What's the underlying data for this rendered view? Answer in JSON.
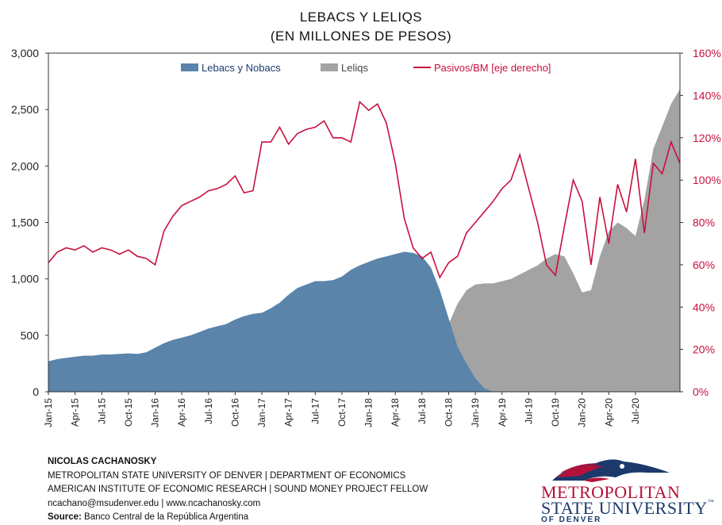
{
  "title": "LEBACS Y LELIQS",
  "subtitle": "(EN MILLONES DE PESOS)",
  "chart_data": {
    "type": "area",
    "x_ticks": [
      "Jan-15",
      "Apr-15",
      "Jul-15",
      "Oct-15",
      "Jan-16",
      "Apr-16",
      "Jul-16",
      "Oct-16",
      "Jan-17",
      "Apr-17",
      "Jul-17",
      "Oct-17",
      "Jan-18",
      "Apr-18",
      "Jul-18",
      "Oct-18",
      "Jan-19",
      "Apr-19",
      "Jul-19",
      "Oct-19",
      "Jan-20",
      "Apr-20",
      "Jul-20"
    ],
    "x_range_months": [
      0,
      71
    ],
    "y_left": {
      "ticks": [
        "0",
        "500",
        "1,000",
        "1,500",
        "2,000",
        "2,500",
        "3,000"
      ],
      "range": [
        0,
        3000
      ]
    },
    "y_right": {
      "ticks": [
        "0%",
        "20%",
        "40%",
        "60%",
        "80%",
        "100%",
        "120%",
        "140%",
        "160%"
      ],
      "range": [
        0,
        160
      ]
    },
    "legend": {
      "placement": "top",
      "entries": [
        "Lebacs y Nobacs",
        "Leliqs",
        "Pasivos/BM [eje derecho]"
      ]
    },
    "colors": {
      "lebacs": "#5a84aa",
      "leliqs": "#a3a3a3",
      "ratio": "#c8103e",
      "right_axis": "#c8103e"
    },
    "series": [
      {
        "name": "Lebacs y Nobacs",
        "axis": "left",
        "points": [
          [
            0,
            270
          ],
          [
            1,
            290
          ],
          [
            2,
            300
          ],
          [
            3,
            310
          ],
          [
            4,
            320
          ],
          [
            5,
            320
          ],
          [
            6,
            330
          ],
          [
            7,
            330
          ],
          [
            8,
            335
          ],
          [
            9,
            340
          ],
          [
            10,
            335
          ],
          [
            11,
            350
          ],
          [
            12,
            390
          ],
          [
            13,
            430
          ],
          [
            14,
            460
          ],
          [
            15,
            480
          ],
          [
            16,
            500
          ],
          [
            17,
            530
          ],
          [
            18,
            560
          ],
          [
            19,
            580
          ],
          [
            20,
            600
          ],
          [
            21,
            640
          ],
          [
            22,
            670
          ],
          [
            23,
            690
          ],
          [
            24,
            700
          ],
          [
            25,
            740
          ],
          [
            26,
            790
          ],
          [
            27,
            860
          ],
          [
            28,
            920
          ],
          [
            29,
            950
          ],
          [
            30,
            980
          ],
          [
            31,
            980
          ],
          [
            32,
            990
          ],
          [
            33,
            1020
          ],
          [
            34,
            1080
          ],
          [
            35,
            1120
          ],
          [
            36,
            1150
          ],
          [
            37,
            1180
          ],
          [
            38,
            1200
          ],
          [
            39,
            1220
          ],
          [
            40,
            1240
          ],
          [
            41,
            1230
          ],
          [
            42,
            1200
          ],
          [
            43,
            1100
          ],
          [
            44,
            900
          ],
          [
            45,
            650
          ],
          [
            46,
            400
          ],
          [
            47,
            250
          ],
          [
            48,
            120
          ],
          [
            49,
            30
          ],
          [
            50,
            0
          ],
          [
            71,
            0
          ]
        ]
      },
      {
        "name": "Leliqs",
        "axis": "left",
        "points": [
          [
            0,
            0
          ],
          [
            41,
            0
          ],
          [
            42,
            30
          ],
          [
            43,
            220
          ],
          [
            44,
            370
          ],
          [
            45,
            600
          ],
          [
            46,
            780
          ],
          [
            47,
            900
          ],
          [
            48,
            950
          ],
          [
            49,
            960
          ],
          [
            50,
            960
          ],
          [
            51,
            980
          ],
          [
            52,
            1000
          ],
          [
            53,
            1040
          ],
          [
            54,
            1080
          ],
          [
            55,
            1120
          ],
          [
            56,
            1180
          ],
          [
            57,
            1220
          ],
          [
            58,
            1200
          ],
          [
            59,
            1050
          ],
          [
            60,
            880
          ],
          [
            61,
            900
          ],
          [
            62,
            1200
          ],
          [
            63,
            1420
          ],
          [
            64,
            1500
          ],
          [
            65,
            1450
          ],
          [
            66,
            1380
          ],
          [
            67,
            1700
          ],
          [
            68,
            2150
          ],
          [
            69,
            2350
          ],
          [
            70,
            2550
          ],
          [
            71,
            2680
          ]
        ]
      },
      {
        "name": "Pasivos/BM [eje derecho]",
        "axis": "right",
        "points": [
          [
            0,
            61
          ],
          [
            1,
            66
          ],
          [
            2,
            68
          ],
          [
            3,
            67
          ],
          [
            4,
            69
          ],
          [
            5,
            66
          ],
          [
            6,
            68
          ],
          [
            7,
            67
          ],
          [
            8,
            65
          ],
          [
            9,
            67
          ],
          [
            10,
            64
          ],
          [
            11,
            63
          ],
          [
            12,
            60
          ],
          [
            13,
            76
          ],
          [
            14,
            83
          ],
          [
            15,
            88
          ],
          [
            16,
            90
          ],
          [
            17,
            92
          ],
          [
            18,
            95
          ],
          [
            19,
            96
          ],
          [
            20,
            98
          ],
          [
            21,
            102
          ],
          [
            22,
            94
          ],
          [
            23,
            95
          ],
          [
            24,
            118
          ],
          [
            25,
            118
          ],
          [
            26,
            125
          ],
          [
            27,
            117
          ],
          [
            28,
            122
          ],
          [
            29,
            124
          ],
          [
            30,
            125
          ],
          [
            31,
            128
          ],
          [
            32,
            120
          ],
          [
            33,
            120
          ],
          [
            34,
            118
          ],
          [
            35,
            137
          ],
          [
            36,
            133
          ],
          [
            37,
            136
          ],
          [
            38,
            127
          ],
          [
            39,
            108
          ],
          [
            40,
            82
          ],
          [
            41,
            68
          ],
          [
            42,
            63
          ],
          [
            43,
            66
          ],
          [
            44,
            54
          ],
          [
            45,
            61
          ],
          [
            46,
            64
          ],
          [
            47,
            75
          ],
          [
            48,
            80
          ],
          [
            49,
            85
          ],
          [
            50,
            90
          ],
          [
            51,
            96
          ],
          [
            52,
            100
          ],
          [
            53,
            112
          ],
          [
            54,
            96
          ],
          [
            55,
            80
          ],
          [
            56,
            60
          ],
          [
            57,
            55
          ],
          [
            58,
            78
          ],
          [
            59,
            100
          ],
          [
            60,
            90
          ],
          [
            61,
            60
          ],
          [
            62,
            92
          ],
          [
            63,
            70
          ],
          [
            64,
            98
          ],
          [
            65,
            85
          ],
          [
            66,
            110
          ],
          [
            67,
            75
          ],
          [
            68,
            108
          ],
          [
            69,
            103
          ],
          [
            70,
            118
          ],
          [
            71,
            108
          ]
        ]
      }
    ]
  },
  "credits": {
    "line1": "NICOLAS CACHANOSKY",
    "line2": "METROPOLITAN  STATE UNIVERSITY  OF DENVER  |  DEPARTMENT  OF ECONOMICS",
    "line3": "AMERICAN  INSTITUTE OF ECONOMIC RESEARCH  |  SOUND MONEY PROJECT FELLOW",
    "line4": "ncachano@msudenver.edu  |  www.ncachanosky.com",
    "source_label": "Source:",
    "source_text": " Banco Central de la República Argentina"
  },
  "logo": {
    "line1": "METROPOLITAN",
    "line2": "STATE UNIVERSITY",
    "tm": "™",
    "line3": "OF DENVER",
    "icon": "roadrunner-logo-icon"
  }
}
